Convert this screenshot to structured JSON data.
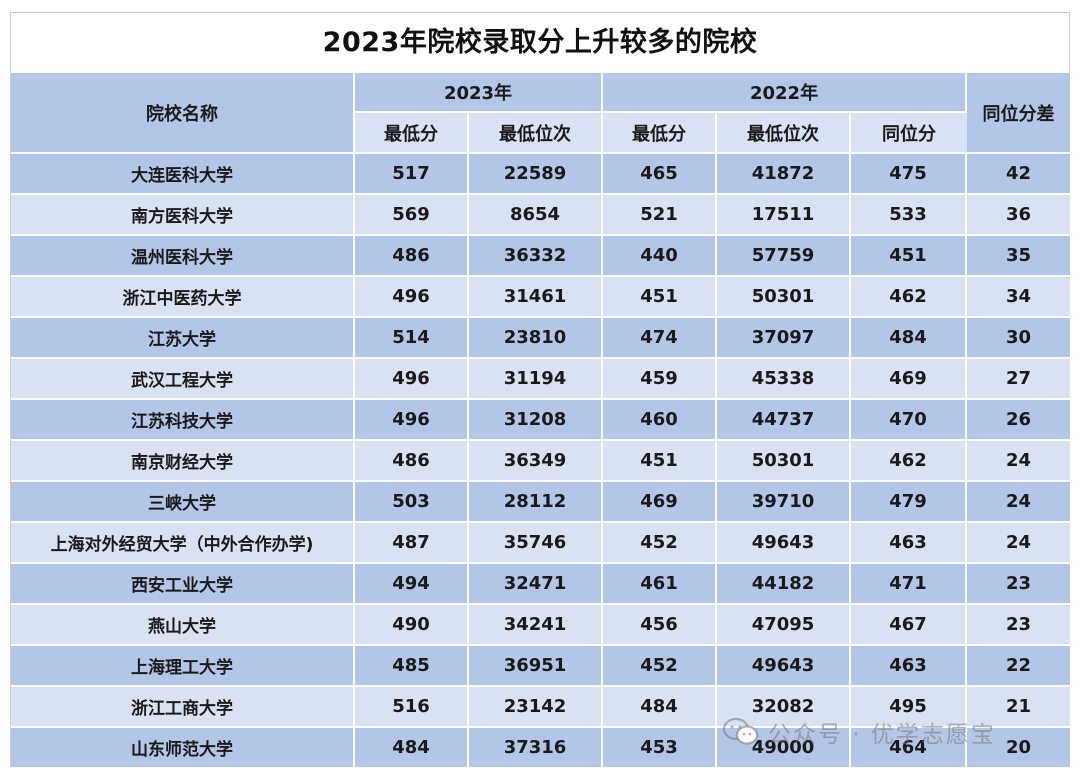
{
  "title": "2023年院校录取分上升较多的院校",
  "headers": {
    "school": "院校名称",
    "year_2023": "2023年",
    "year_2022": "2022年",
    "diff": "同位分差",
    "min_score_2023": "最低分",
    "min_rank_2023": "最低位次",
    "min_score_2022": "最低分",
    "min_rank_2022": "最低位次",
    "equiv_score_2022": "同位分"
  },
  "rows": [
    {
      "school": "大连医科大学",
      "s23": "517",
      "r23": "22589",
      "s22": "465",
      "r22": "41872",
      "eq22": "475",
      "diff": "42"
    },
    {
      "school": "南方医科大学",
      "s23": "569",
      "r23": "8654",
      "s22": "521",
      "r22": "17511",
      "eq22": "533",
      "diff": "36"
    },
    {
      "school": "温州医科大学",
      "s23": "486",
      "r23": "36332",
      "s22": "440",
      "r22": "57759",
      "eq22": "451",
      "diff": "35"
    },
    {
      "school": "浙江中医药大学",
      "s23": "496",
      "r23": "31461",
      "s22": "451",
      "r22": "50301",
      "eq22": "462",
      "diff": "34"
    },
    {
      "school": "江苏大学",
      "s23": "514",
      "r23": "23810",
      "s22": "474",
      "r22": "37097",
      "eq22": "484",
      "diff": "30"
    },
    {
      "school": "武汉工程大学",
      "s23": "496",
      "r23": "31194",
      "s22": "459",
      "r22": "45338",
      "eq22": "469",
      "diff": "27"
    },
    {
      "school": "江苏科技大学",
      "s23": "496",
      "r23": "31208",
      "s22": "460",
      "r22": "44737",
      "eq22": "470",
      "diff": "26"
    },
    {
      "school": "南京财经大学",
      "s23": "486",
      "r23": "36349",
      "s22": "451",
      "r22": "50301",
      "eq22": "462",
      "diff": "24"
    },
    {
      "school": "三峡大学",
      "s23": "503",
      "r23": "28112",
      "s22": "469",
      "r22": "39710",
      "eq22": "479",
      "diff": "24"
    },
    {
      "school": "上海对外经贸大学（中外合作办学)",
      "s23": "487",
      "r23": "35746",
      "s22": "452",
      "r22": "49643",
      "eq22": "463",
      "diff": "24"
    },
    {
      "school": "西安工业大学",
      "s23": "494",
      "r23": "32471",
      "s22": "461",
      "r22": "44182",
      "eq22": "471",
      "diff": "23"
    },
    {
      "school": "燕山大学",
      "s23": "490",
      "r23": "34241",
      "s22": "456",
      "r22": "47095",
      "eq22": "467",
      "diff": "23"
    },
    {
      "school": "上海理工大学",
      "s23": "485",
      "r23": "36951",
      "s22": "452",
      "r22": "49643",
      "eq22": "463",
      "diff": "22"
    },
    {
      "school": "浙江工商大学",
      "s23": "516",
      "r23": "23142",
      "s22": "484",
      "r22": "32082",
      "eq22": "495",
      "diff": "21"
    },
    {
      "school": "山东师范大学",
      "s23": "484",
      "r23": "37316",
      "s22": "453",
      "r22": "49000",
      "eq22": "464",
      "diff": "20"
    }
  ],
  "watermark": {
    "icon": "wechat-icon",
    "text": "公众号 · 优学志愿宝"
  }
}
